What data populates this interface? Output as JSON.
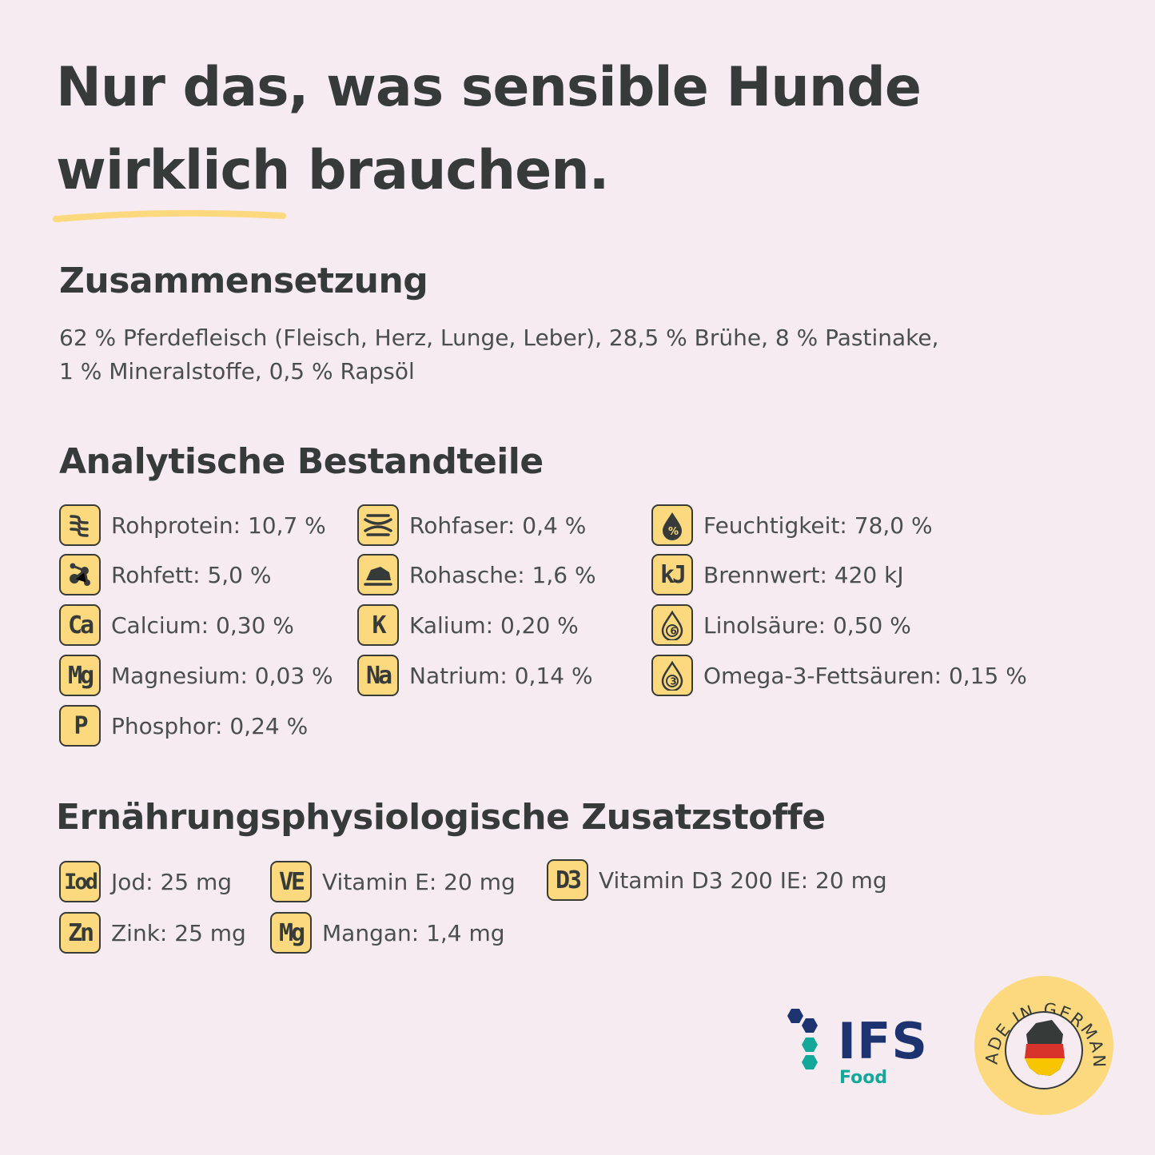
{
  "headline": {
    "line1": "Nur das, was sensible Hunde",
    "line2_highlight": "wirklich",
    "line2_rest": " brauchen."
  },
  "composition": {
    "title": "Zusammensetzung",
    "line1": "62 % Pferdefleisch (Fleisch, Herz, Lunge, Leber), 28,5 % Brühe, 8 % Pastinake,",
    "line2": "1 % Mineralstoffe, 0,5 % Rapsöl"
  },
  "analytic": {
    "title": "Analytische Bestandteile",
    "items": [
      {
        "icon": "protein-helix-icon",
        "badge": "",
        "label": "Rohprotein: 10,7 %"
      },
      {
        "icon": "fiber-icon",
        "badge": "",
        "label": "Rohfaser: 0,4 %"
      },
      {
        "icon": "moisture-drop-icon",
        "badge": "",
        "label": "Feuchtigkeit: 78,0 %"
      },
      {
        "icon": "fat-molecule-icon",
        "badge": "",
        "label": "Rohfett: 5,0 %"
      },
      {
        "icon": "ash-rock-icon",
        "badge": "",
        "label": "Rohasche: 1,6 %"
      },
      {
        "icon": "energy-icon",
        "badge": "kJ",
        "label": "Brennwert: 420 kJ"
      },
      {
        "icon": "calcium-icon",
        "badge": "Ca",
        "label": "Calcium: 0,30 %"
      },
      {
        "icon": "potassium-icon",
        "badge": "K",
        "label": "Kalium: 0,20 %"
      },
      {
        "icon": "omega-6-drop-icon",
        "badge": "6",
        "label": "Linolsäure: 0,50 %"
      },
      {
        "icon": "magnesium-icon",
        "badge": "Mg",
        "label": "Magnesium: 0,03 %"
      },
      {
        "icon": "sodium-icon",
        "badge": "Na",
        "label": "Natrium: 0,14 %"
      },
      {
        "icon": "omega-3-drop-icon",
        "badge": "3",
        "label": "Omega-3-Fettsäuren: 0,15 %"
      },
      {
        "icon": "phosphorus-icon",
        "badge": "P",
        "label": "Phosphor: 0,24 %"
      }
    ]
  },
  "additives": {
    "title": "Ernährungsphysiologische Zusatzstoffe",
    "items": [
      {
        "icon": "iodine-icon",
        "badge": "Iod",
        "label": "Jod: 25 mg"
      },
      {
        "icon": "vitamin-e-icon",
        "badge": "VE",
        "label": "Vitamin E: 20 mg"
      },
      {
        "icon": "vitamin-d3-icon",
        "badge": "D3",
        "label": "Vitamin D3 200 IE: 20 mg"
      },
      {
        "icon": "zinc-icon",
        "badge": "Zn",
        "label": "Zink: 25 mg"
      },
      {
        "icon": "manganese-icon",
        "badge": "Mg",
        "label": "Mangan: 1,4 mg"
      }
    ]
  },
  "logos": {
    "ifs_text": "IFS",
    "ifs_sub": "Food",
    "seal_text": "MADE IN GERMANY"
  },
  "colors": {
    "background": "#f5ebf0",
    "text": "#363b3a",
    "badge_fill": "#fcd97e",
    "underline": "#fcd97e",
    "ifs_blue": "#1c3370",
    "ifs_green": "#14a89a"
  }
}
